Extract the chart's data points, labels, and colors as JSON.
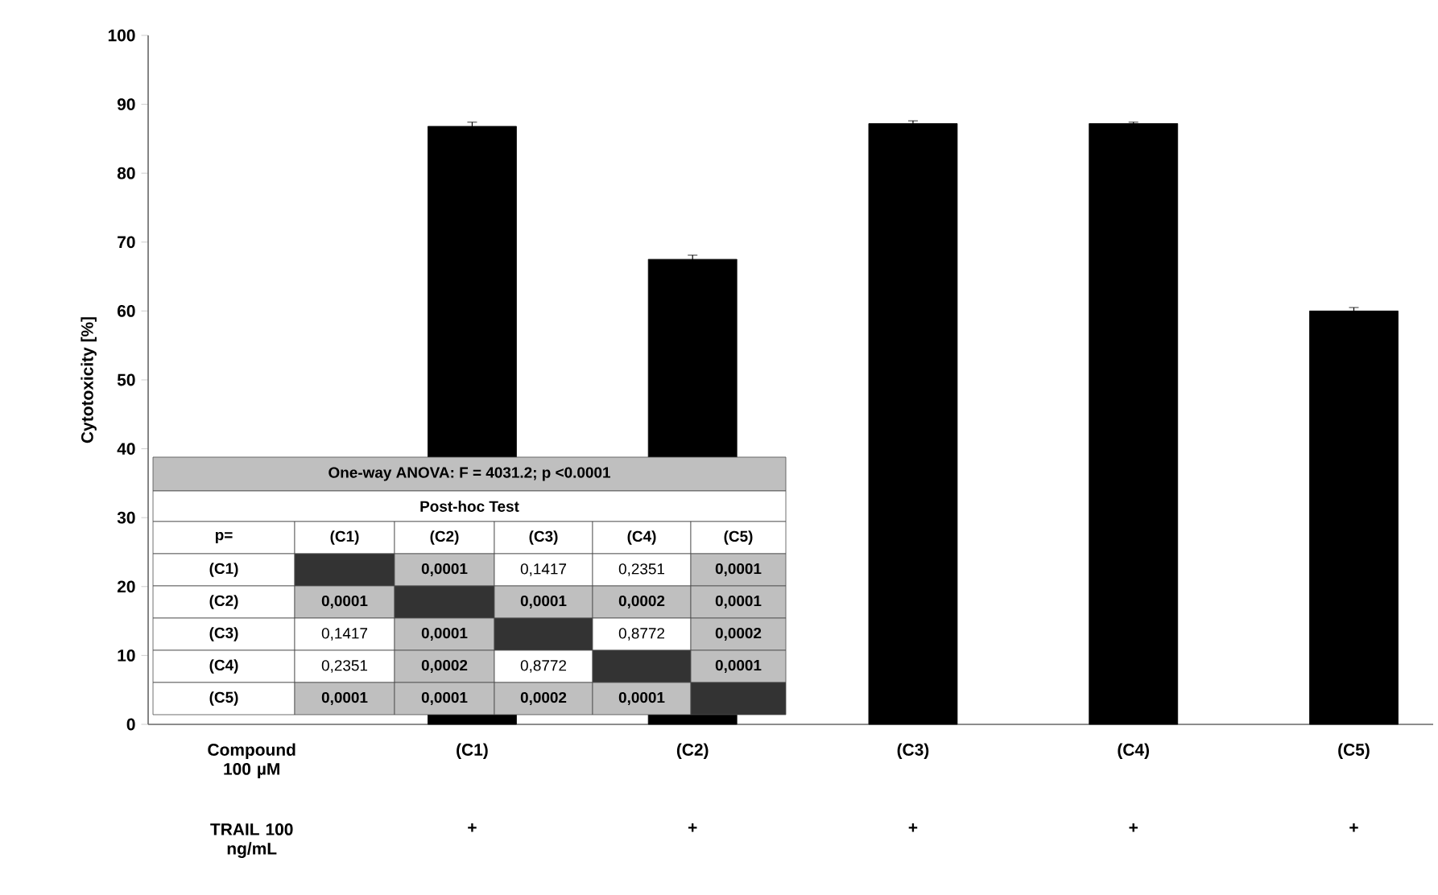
{
  "chart_data": {
    "type": "bar",
    "ylabel": "Cytotoxicity [%]",
    "categories": [
      "Compound 100 µM",
      "(C1)",
      "(C2)",
      "(C3)",
      "(C4)",
      "(C5)"
    ],
    "values": [
      null,
      86.8,
      67.5,
      87.2,
      87.2,
      60.0
    ],
    "errors": [
      null,
      0.6,
      0.6,
      0.4,
      0.2,
      0.5
    ],
    "color": "#000000",
    "ylim": [
      0,
      100
    ],
    "yticks": [
      0,
      10,
      20,
      30,
      40,
      50,
      60,
      70,
      80,
      90,
      100
    ],
    "annotations": [
      "One-way ANOVA:  F = 4031.2; p <0.0001",
      "Post-hoc Test",
      "p=",
      "(C1)",
      "(C2)",
      "(C3)",
      "(C4)",
      "(C5)",
      "(C1)",
      "**0,0001**",
      "0,1417",
      "0,2351",
      "**0,0001**",
      "(C2)",
      "**0,0001**",
      "**0,0001**",
      "**0,0002**",
      "**0,0001**",
      "(C3)",
      "0,1417",
      "**0,0001**",
      "0,8772",
      "**0,0002**",
      "(C4)",
      "0,2351",
      "**0,0002**",
      "0,8772",
      "**0,0001**",
      "(C5)",
      "**0,0001**",
      "**0,0001**",
      "**0,0002**",
      "**0,0001**",
      "TRAIL  100 ng/mL",
      "+",
      "+",
      "+",
      "+",
      "+"
    ]
  }
}
